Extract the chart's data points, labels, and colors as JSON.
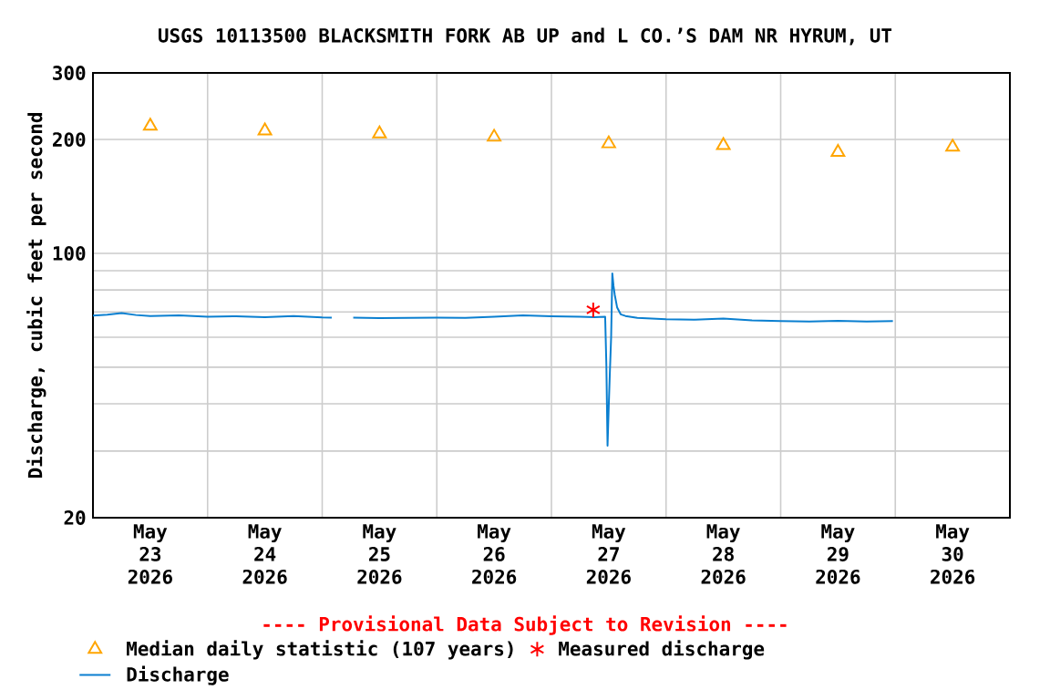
{
  "chart_data": {
    "type": "line",
    "title": "USGS 10113500 BLACKSMITH FORK AB UP and L CO.’S DAM NR HYRUM, UT",
    "ylabel": "Discharge, cubic feet per second",
    "annotations": [
      "---- Provisional Data Subject to Revision ----"
    ],
    "log": "y",
    "grid": true,
    "legend": "bottom",
    "xlim": [
      "2026-05-23",
      "2026-05-31"
    ],
    "xticks": [
      {
        "value": "2026-05-24",
        "label": null
      },
      {
        "value": "2026-05-25",
        "label": null
      },
      {
        "value": "2026-05-26",
        "label": null
      },
      {
        "value": "2026-05-27",
        "label": null
      },
      {
        "value": "2026-05-28",
        "label": null
      },
      {
        "value": "2026-05-29",
        "label": null
      },
      {
        "value": "2026-05-30",
        "label": null
      },
      {
        "value": "2026-05-23T12:00",
        "label": "May 23 2026"
      },
      {
        "value": "2026-05-24T12:00",
        "label": "May 24 2026"
      },
      {
        "value": "2026-05-25T12:00",
        "label": "May 25 2026"
      },
      {
        "value": "2026-05-26T12:00",
        "label": "May 26 2026"
      },
      {
        "value": "2026-05-27T12:00",
        "label": "May 27 2026"
      },
      {
        "value": "2026-05-28T12:00",
        "label": "May 28 2026"
      },
      {
        "value": "2026-05-29T12:00",
        "label": "May 29 2026"
      },
      {
        "value": "2026-05-30T12:00",
        "label": "May 30 2026"
      }
    ],
    "ylim": [
      20,
      300
    ],
    "yticks": [
      20,
      {
        "value": 30,
        "label": null
      },
      {
        "value": 40,
        "label": null
      },
      {
        "value": 50,
        "label": null
      },
      {
        "value": 60,
        "label": null
      },
      {
        "value": 70,
        "label": null
      },
      {
        "value": 80,
        "label": null
      },
      {
        "value": 90,
        "label": null
      },
      100,
      200,
      300
    ],
    "series": [
      {
        "name": "Median daily statistic (107 years)",
        "type": "scatter",
        "marker": "triangle",
        "color": "#ffa500",
        "x": [
          "2026-05-23T12:00",
          "2026-05-24T12:00",
          "2026-05-25T12:00",
          "2026-05-26T12:00",
          "2026-05-27T12:00",
          "2026-05-28T12:00",
          "2026-05-29T12:00",
          "2026-05-30T12:00"
        ],
        "values": [
          217,
          211,
          207,
          203,
          195,
          193,
          185,
          191
        ]
      },
      {
        "name": "Measured discharge",
        "type": "scatter",
        "marker": "cross",
        "color": "#ff0000",
        "x": [
          "2026-05-27T08:45"
        ],
        "values": [
          70.9
        ]
      },
      {
        "name": "Discharge",
        "marker": "none",
        "color": "#0a7fd0",
        "x": [
          "2026-05-23T00:00",
          "2026-05-23T03:00",
          "2026-05-23T06:00",
          "2026-05-23T09:00",
          "2026-05-23T12:00",
          "2026-05-23T18:00",
          "2026-05-24T00:00",
          "2026-05-24T06:00",
          "2026-05-24T12:00",
          "2026-05-24T18:00",
          "2026-05-25T00:00",
          "2026-05-25T02:00",
          "2026-05-25T04:00",
          "2026-05-25T06:30",
          "2026-05-25T12:00",
          "2026-05-25T18:00",
          "2026-05-26T00:00",
          "2026-05-26T06:00",
          "2026-05-26T12:00",
          "2026-05-26T18:00",
          "2026-05-27T00:00",
          "2026-05-27T06:00",
          "2026-05-27T09:00",
          "2026-05-27T11:15",
          "2026-05-27T11:30",
          "2026-05-27T11:45",
          "2026-05-27T12:00",
          "2026-05-27T12:15",
          "2026-05-27T12:30",
          "2026-05-27T12:45",
          "2026-05-27T13:00",
          "2026-05-27T13:15",
          "2026-05-27T13:45",
          "2026-05-27T14:30",
          "2026-05-27T15:30",
          "2026-05-27T18:00",
          "2026-05-28T00:00",
          "2026-05-28T06:00",
          "2026-05-28T12:00",
          "2026-05-28T18:00",
          "2026-05-29T00:00",
          "2026-05-29T06:00",
          "2026-05-29T12:00",
          "2026-05-29T18:00",
          "2026-05-29T23:30"
        ],
        "values": [
          68.5,
          68.8,
          69.5,
          68.7,
          68.3,
          68.6,
          68.0,
          68.2,
          67.8,
          68.3,
          67.7,
          67.6,
          null,
          67.6,
          67.4,
          67.5,
          67.6,
          67.5,
          68.0,
          68.6,
          68.2,
          68.0,
          67.8,
          68.0,
          50.8,
          31,
          39.4,
          49,
          60,
          88.5,
          82,
          77.8,
          72,
          69,
          68.3,
          67.5,
          67.0,
          66.8,
          67.2,
          66.5,
          66.2,
          66.0,
          66.3,
          66.0,
          66.2
        ]
      }
    ]
  }
}
